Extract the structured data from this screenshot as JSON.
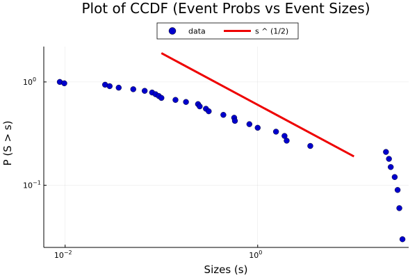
{
  "chart_data": {
    "type": "scatter",
    "title": "Plot of CCDF (Event Probs vs Event Sizes)",
    "xlabel": "Sizes (s)",
    "ylabel": "P (S > s)",
    "x_scale": "log",
    "y_scale": "log",
    "xlim": [
      0.006,
      37
    ],
    "ylim": [
      0.025,
      2.2
    ],
    "x_ticks": [
      {
        "value": 0.01,
        "base": "10",
        "exp": "−2"
      },
      {
        "value": 1,
        "base": "10",
        "exp": "0"
      }
    ],
    "y_ticks": [
      {
        "value": 0.1,
        "base": "10",
        "exp": "−1"
      },
      {
        "value": 1,
        "base": "10",
        "exp": "0"
      }
    ],
    "grid": true,
    "legend_position": "top-center",
    "colors": {
      "data": "#0000cc",
      "line": "#ee0000"
    },
    "series": [
      {
        "name": "data",
        "kind": "scatter",
        "x": [
          0.0088,
          0.0098,
          0.026,
          0.029,
          0.036,
          0.051,
          0.067,
          0.08,
          0.087,
          0.094,
          0.1,
          0.14,
          0.18,
          0.24,
          0.25,
          0.29,
          0.31,
          0.44,
          0.57,
          0.58,
          0.82,
          1.0,
          1.55,
          1.9,
          2.0,
          3.52,
          21.5,
          23.1,
          24.1,
          26.5,
          28.4,
          29.6,
          31.9
        ],
        "y": [
          1.0,
          0.97,
          0.94,
          0.91,
          0.88,
          0.85,
          0.82,
          0.79,
          0.76,
          0.73,
          0.7,
          0.67,
          0.64,
          0.61,
          0.58,
          0.55,
          0.52,
          0.48,
          0.45,
          0.42,
          0.39,
          0.36,
          0.33,
          0.3,
          0.27,
          0.24,
          0.21,
          0.18,
          0.15,
          0.12,
          0.09,
          0.06,
          0.03
        ]
      },
      {
        "name": "s ^ (1/2)",
        "kind": "line",
        "x": [
          0.1,
          10
        ],
        "y": [
          1.9,
          0.19
        ]
      }
    ]
  }
}
